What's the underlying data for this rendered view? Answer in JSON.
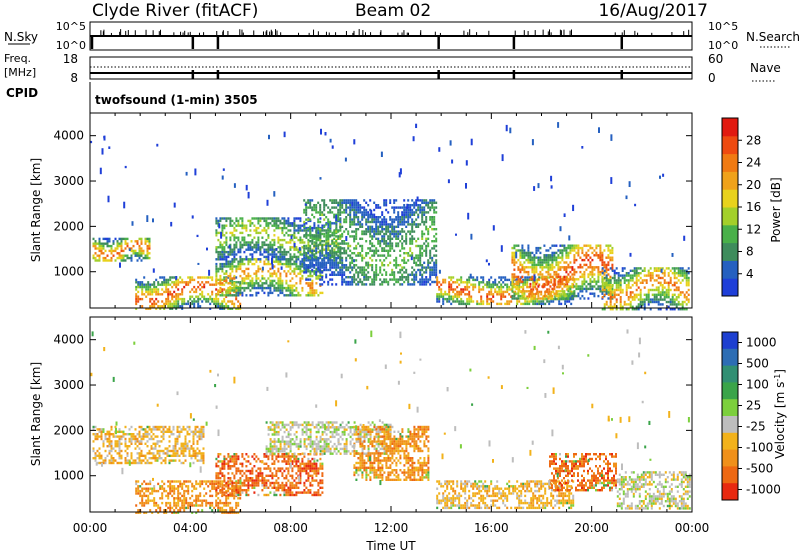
{
  "header": {
    "station": "Clyde River (fitACF)",
    "beam": "Beam 02",
    "date": "16/Aug/2017"
  },
  "sky_panel": {
    "left_label": "N.Sky",
    "right_label": "N.Search",
    "tick_top": "10^5",
    "tick_bottom": "10^0",
    "tick_top_right": "10^5",
    "tick_bottom_right": "10^0"
  },
  "freq_panel": {
    "left_label_1": "Freq.",
    "left_label_2": "[MHz]",
    "left_ticks": [
      "18",
      "8"
    ],
    "right_label": "Nave",
    "right_ticks": [
      "60",
      "0"
    ]
  },
  "cpid": {
    "label": "CPID",
    "value": "twofsound (1-min) 3505"
  },
  "colors": {
    "power": [
      "#1f3fd8",
      "#2560c0",
      "#3e8c5c",
      "#49b049",
      "#a3cf2a",
      "#e8d21c",
      "#f0a21a",
      "#f07a12",
      "#ee4a10",
      "#e11a10"
    ],
    "velocity": [
      "#1d3fd0",
      "#2d6db4",
      "#318f73",
      "#3aa449",
      "#7ccf3c",
      "#bdbdbd",
      "#f2b21b",
      "#f0901a",
      "#ee6812",
      "#e82910"
    ]
  },
  "chart_data": [
    {
      "type": "heatmap",
      "name": "power",
      "ylabel": "Slant Range [km]",
      "yticks": [
        "1000",
        "2000",
        "3000",
        "4000"
      ],
      "ylim": [
        200,
        4500
      ],
      "xlim_hours": [
        0,
        24
      ],
      "colorbar": {
        "label": "Power [dB]",
        "range": [
          0,
          32
        ],
        "ticks": [
          "4",
          "8",
          "12",
          "16",
          "20",
          "24",
          "28"
        ]
      },
      "features": [
        {
          "start_h": 0.1,
          "end_h": 2.4,
          "range_km": [
            1250,
            1750
          ],
          "peak_db": 28
        },
        {
          "start_h": 1.8,
          "end_h": 6.0,
          "range_km": [
            200,
            900
          ],
          "peak_db": 30
        },
        {
          "start_h": 5.0,
          "end_h": 9.3,
          "range_km": [
            500,
            1300
          ],
          "peak_db": 24
        },
        {
          "start_h": 5.0,
          "end_h": 10.0,
          "range_km": [
            1300,
            2200
          ],
          "peak_db": 16
        },
        {
          "start_h": 8.5,
          "end_h": 13.8,
          "range_km": [
            700,
            2600
          ],
          "peak_db": 12
        },
        {
          "start_h": 13.8,
          "end_h": 19.3,
          "range_km": [
            300,
            900
          ],
          "peak_db": 30
        },
        {
          "start_h": 16.8,
          "end_h": 20.8,
          "range_km": [
            400,
            1600
          ],
          "peak_db": 30
        },
        {
          "start_h": 20.4,
          "end_h": 23.9,
          "range_km": [
            200,
            1100
          ],
          "peak_db": 26
        }
      ]
    },
    {
      "type": "heatmap",
      "name": "velocity",
      "ylabel": "Slant Range [km]",
      "yticks": [
        "1000",
        "2000",
        "3000",
        "4000"
      ],
      "ylim": [
        200,
        4500
      ],
      "xlim_hours": [
        0,
        24
      ],
      "xticks": [
        "00:00",
        "04:00",
        "08:00",
        "12:00",
        "16:00",
        "20:00",
        "00:00"
      ],
      "xlabel": "Time UT",
      "colorbar": {
        "label": "Velocity [m s^-1]",
        "ticks": [
          "1000",
          "500",
          "100",
          "25",
          "-25",
          "-100",
          "-500",
          "-1000"
        ]
      },
      "features": [
        {
          "start_h": 0.1,
          "end_h": 4.5,
          "range_km": [
            1300,
            2100
          ],
          "velocity_ms": -90
        },
        {
          "start_h": 1.8,
          "end_h": 6.0,
          "range_km": [
            200,
            900
          ],
          "velocity_ms": -400
        },
        {
          "start_h": 5.0,
          "end_h": 9.3,
          "range_km": [
            600,
            1500
          ],
          "velocity_ms": -700
        },
        {
          "start_h": 7.0,
          "end_h": 12.0,
          "range_km": [
            1500,
            2200
          ],
          "velocity_ms": 0
        },
        {
          "start_h": 10.5,
          "end_h": 13.5,
          "range_km": [
            900,
            2100
          ],
          "velocity_ms": -300
        },
        {
          "start_h": 13.8,
          "end_h": 19.3,
          "range_km": [
            300,
            900
          ],
          "velocity_ms": -120
        },
        {
          "start_h": 18.3,
          "end_h": 21.0,
          "range_km": [
            700,
            1500
          ],
          "velocity_ms": -800
        },
        {
          "start_h": 21.0,
          "end_h": 23.9,
          "range_km": [
            300,
            1100
          ],
          "velocity_ms": 0
        }
      ]
    }
  ]
}
